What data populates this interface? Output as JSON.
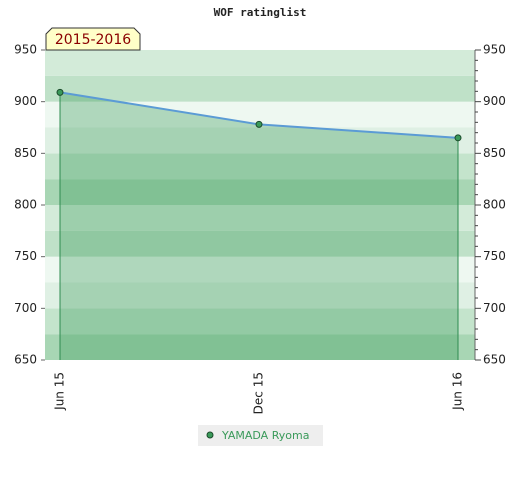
{
  "chart_data": {
    "type": "area",
    "title": "WOF ratinglist",
    "annotation": "2015-2016",
    "categories": [
      "Jun 15",
      "Dec 15",
      "Jun 16"
    ],
    "series": [
      {
        "name": "YAMADA Ryoma",
        "color": "#3a9a5a",
        "line_color": "#5b9bd5",
        "values": [
          909,
          878,
          865
        ]
      }
    ],
    "ylim": [
      650,
      950
    ],
    "yticks": [
      650,
      700,
      750,
      800,
      850,
      900,
      950
    ],
    "y2lim": [
      650,
      950
    ],
    "y2ticks": [
      650,
      700,
      750,
      800,
      850,
      900,
      950
    ],
    "grid": true
  }
}
